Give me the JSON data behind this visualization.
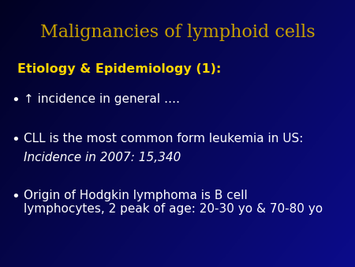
{
  "title": "Malignancies of lymphoid cells",
  "title_color": "#C8A000",
  "title_fontsize": 16,
  "subtitle": "Etiology & Epidemiology (1):",
  "subtitle_color": "#FFD700",
  "subtitle_fontsize": 11.5,
  "bullet_color": "#FFFFFF",
  "bullet_fontsize": 11,
  "bullets": [
    "↑ incidence in general ….",
    "CLL is the most common form leukemia in US:",
    "Origin of Hodgkin lymphoma is B cell\nlymphocytes, 2 peak of age: 20-30 yo & 70-80 yo"
  ],
  "italic_line": "Incidence in 2007: 15,340",
  "bg_color_top_left": "#050510",
  "bg_color_top_right": "#000080",
  "bg_color_bottom": "#000080"
}
